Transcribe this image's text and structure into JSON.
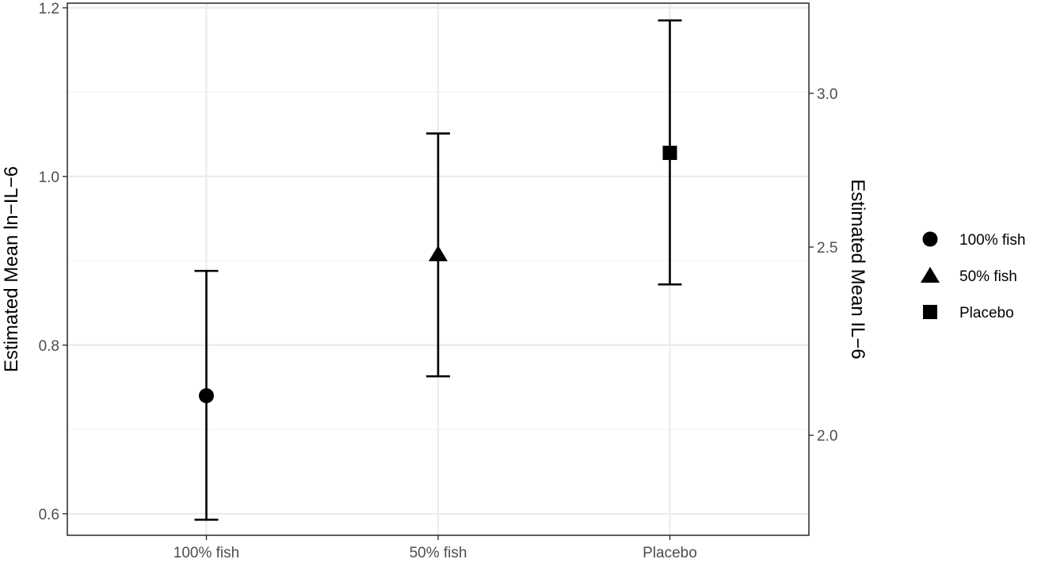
{
  "chart_data": {
    "type": "scatter",
    "categories": [
      "100% fish",
      "50% fish",
      "Placebo"
    ],
    "series": [
      {
        "name": "100% fish",
        "shape": "circle",
        "category": "100% fish",
        "y": 0.74,
        "ymin": 0.593,
        "ymax": 0.888
      },
      {
        "name": "50% fish",
        "shape": "triangle",
        "category": "50% fish",
        "y": 0.908,
        "ymin": 0.763,
        "ymax": 1.051
      },
      {
        "name": "Placebo",
        "shape": "square",
        "category": "Placebo",
        "y": 1.028,
        "ymin": 0.872,
        "ymax": 1.185
      }
    ],
    "xlabel": "",
    "ylabel": "Estimated Mean ln−IL−6",
    "y2label": "Estimated Mean IL−6",
    "ylim": [
      0.5745,
      1.2055
    ],
    "yticks": [
      0.6,
      0.8,
      1.0,
      1.2
    ],
    "ytick_labels": [
      "0.6",
      "0.8",
      "1.0",
      "1.2"
    ],
    "y2ticks": [
      2.0,
      2.5,
      3.0
    ],
    "y2tick_labels": [
      "2.0",
      "2.5",
      "3.0"
    ],
    "y2_transform": "exp",
    "grid": true,
    "legend_position": "right",
    "colors": {
      "marker": "#000000",
      "panel_border": "#333333",
      "grid_major": "#ebebeb",
      "grid_minor": "#f5f5f5",
      "tick_text": "#4d4d4d"
    }
  }
}
